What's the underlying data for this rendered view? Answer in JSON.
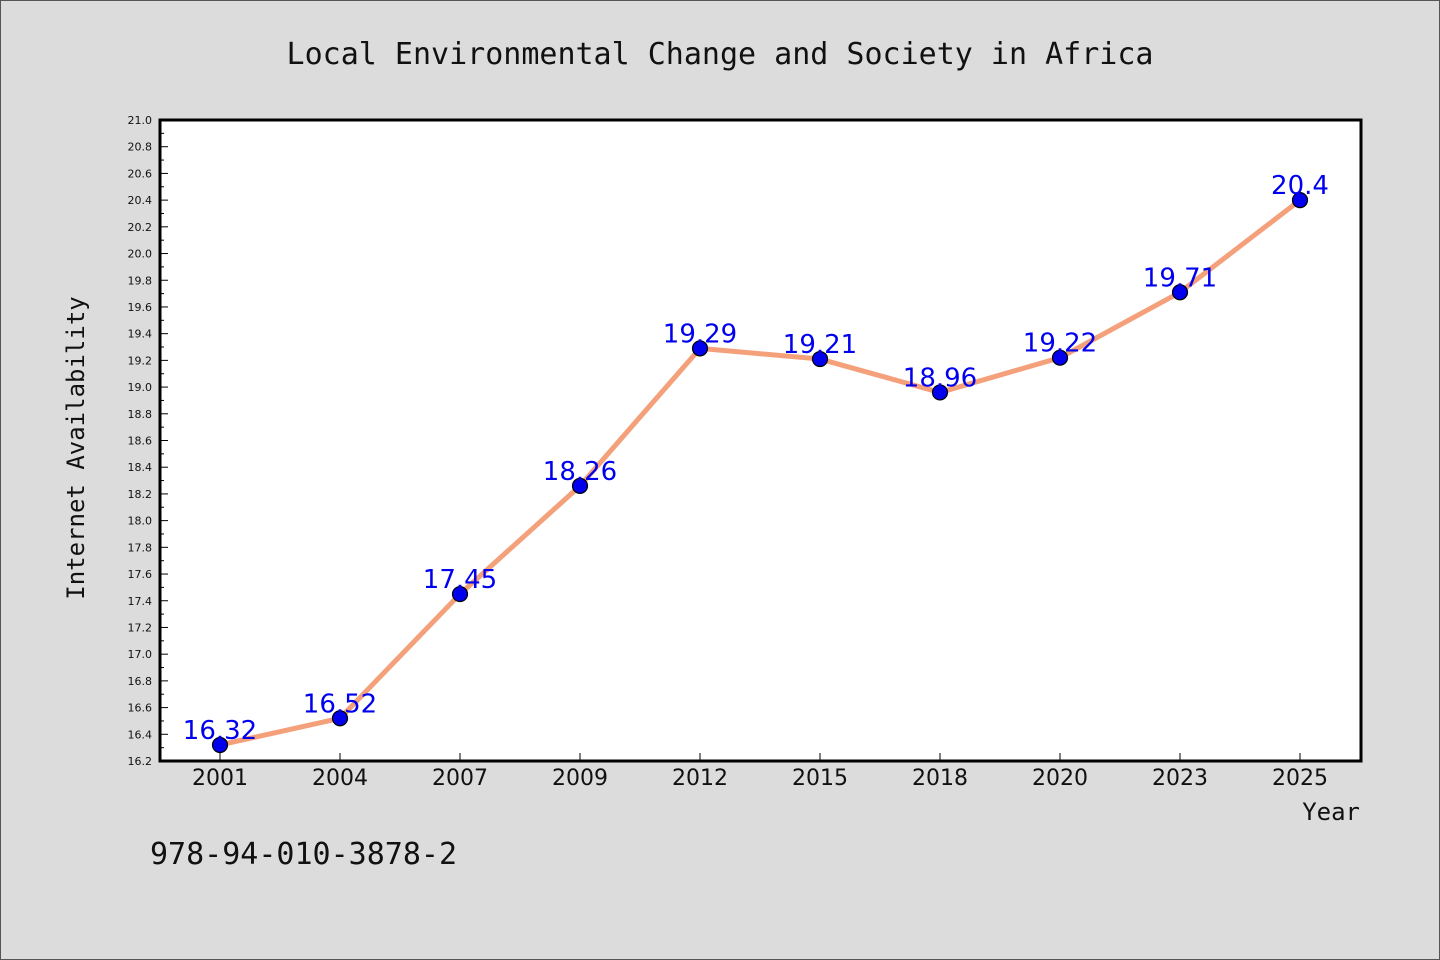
{
  "chart_data": {
    "type": "line",
    "title": "Local Environmental Change and Society in Africa",
    "xlabel": "Year",
    "ylabel": "Internet Availability",
    "categories": [
      "2001",
      "2004",
      "2007",
      "2009",
      "2012",
      "2015",
      "2018",
      "2020",
      "2023",
      "2025"
    ],
    "values": [
      16.32,
      16.52,
      17.45,
      18.26,
      19.29,
      19.21,
      18.96,
      19.22,
      19.71,
      20.4
    ],
    "data_labels": [
      "16.32",
      "16.52",
      "17.45",
      "18.26",
      "19.29",
      "19.21",
      "18.96",
      "19.22",
      "19.71",
      "20.4"
    ],
    "ylim": [
      16.2,
      21.0
    ],
    "yticks": [
      "16.2",
      "16.4",
      "16.6",
      "16.8",
      "17.0",
      "17.2",
      "17.4",
      "17.6",
      "17.8",
      "18.0",
      "18.2",
      "18.4",
      "18.6",
      "18.8",
      "19.0",
      "19.2",
      "19.4",
      "19.6",
      "19.8",
      "20.0",
      "20.2",
      "20.4",
      "20.6",
      "20.8",
      "21.0"
    ],
    "grid": false,
    "line_color": "#f4a07a",
    "marker_color": "#0000ee",
    "label_color": "#0000ee"
  },
  "footer": {
    "isbn": "978-94-010-3878-2"
  }
}
